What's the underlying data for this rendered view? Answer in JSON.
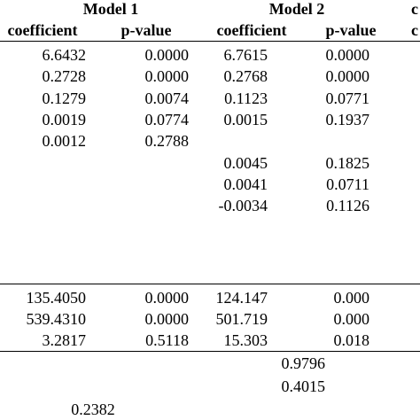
{
  "header": {
    "models": [
      "Model 1",
      "Model 2",
      "c"
    ],
    "columns": [
      "coefficient",
      "p-value",
      "coefficient",
      "p-value",
      "c"
    ]
  },
  "table": {
    "rows": [
      [
        "6.6432",
        "0.0000",
        "6.7615",
        "0.0000"
      ],
      [
        "0.2728",
        "0.0000",
        "0.2768",
        "0.0000"
      ],
      [
        "0.1279",
        "0.0074",
        "0.1123",
        "0.0771"
      ],
      [
        "0.0019",
        "0.0774",
        "0.0015",
        "0.1937"
      ],
      [
        "0.0012",
        "0.2788",
        null,
        null
      ],
      [
        null,
        null,
        "0.0045",
        "0.1825"
      ],
      [
        null,
        null,
        "0.0041",
        "0.0711"
      ],
      [
        null,
        null,
        "-0.0034",
        "0.1126"
      ]
    ]
  },
  "tests": {
    "rows": [
      [
        "135.4050",
        "0.0000",
        "124.147",
        "0.000"
      ],
      [
        "539.4310",
        "0.0000",
        "501.719",
        "0.000"
      ],
      [
        "3.2817",
        "0.5118",
        "15.303",
        "0.018"
      ]
    ]
  },
  "summary": {
    "rows": [
      [
        null,
        "0.9796"
      ],
      [
        null,
        "0.4015"
      ],
      [
        "0.2382",
        null
      ]
    ]
  }
}
